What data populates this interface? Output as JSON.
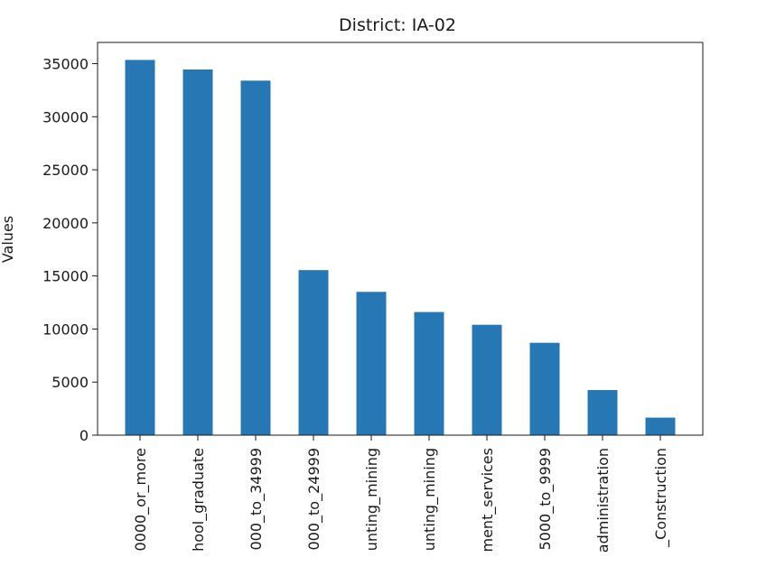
{
  "chart_data": {
    "type": "bar",
    "title": "District: IA-02",
    "xlabel": "",
    "ylabel": "Values",
    "categories": [
      "0000_or_more",
      "hool_graduate",
      "000_to_34999",
      "000_to_24999",
      "unting_mining",
      "unting_mining",
      "ment_services",
      "5000_to_9999",
      "administration",
      "_Construction"
    ],
    "values": [
      35350,
      34450,
      33400,
      15550,
      13500,
      11600,
      10400,
      8700,
      4250,
      1650
    ],
    "ylim": [
      0,
      37000
    ],
    "yticks": [
      0,
      5000,
      10000,
      15000,
      20000,
      25000,
      30000,
      35000
    ],
    "bar_color": "#2677b4",
    "grid": false,
    "legend": "none"
  }
}
